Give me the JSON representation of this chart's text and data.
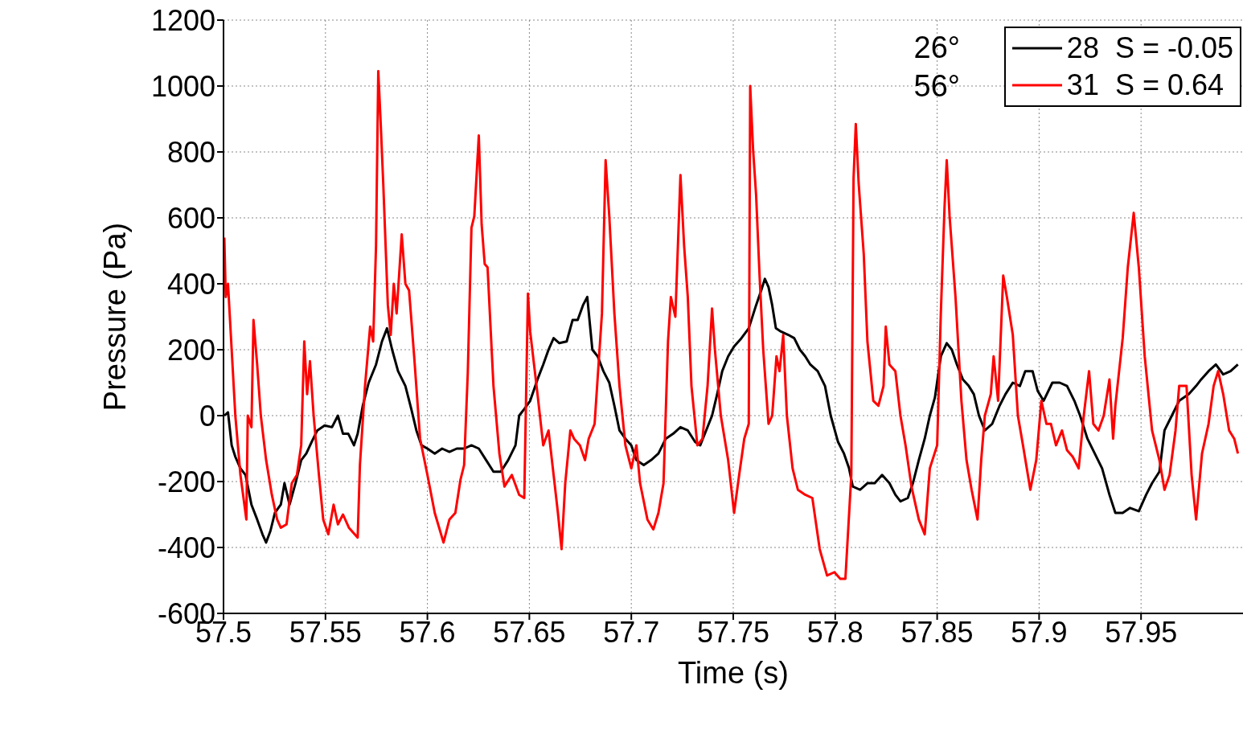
{
  "chart_data": {
    "type": "line",
    "xlabel": "Time (s)",
    "ylabel": "Pressure (Pa)",
    "xlim": [
      57.5,
      58
    ],
    "xticks": [
      57.5,
      57.55,
      57.6,
      57.65,
      57.7,
      57.75,
      57.8,
      57.85,
      57.9,
      57.95
    ],
    "ylim": [
      -600,
      1200
    ],
    "yticks": [
      -600,
      -400,
      -200,
      0,
      200,
      400,
      600,
      800,
      1000,
      1200
    ],
    "grid": true,
    "legend": "top right",
    "marker": "none",
    "line_style": "solid",
    "annotations": [
      "26°",
      "56°"
    ],
    "series": [
      {
        "name": "28  S = -0.05",
        "color": "#000000",
        "x": [
          57.5004,
          57.5022,
          57.504,
          57.5058,
          57.5083,
          57.5108,
          57.5137,
          57.5165,
          57.5191,
          57.5209,
          57.523,
          57.5252,
          57.5281,
          57.5299,
          57.5324,
          57.5353,
          57.5381,
          57.5406,
          57.5432,
          57.546,
          57.5496,
          57.5532,
          57.5561,
          57.5586,
          57.5612,
          57.564,
          57.5658,
          57.5683,
          57.5712,
          57.5748,
          57.5777,
          57.5802,
          57.5827,
          57.5856,
          57.5892,
          57.5921,
          57.5946,
          57.5971,
          57.6,
          57.6036,
          57.6072,
          57.6108,
          57.6144,
          57.618,
          57.6216,
          57.6252,
          57.6288,
          57.6324,
          57.636,
          57.6396,
          57.6432,
          57.645,
          57.6475,
          57.6504,
          57.654,
          57.6568,
          57.6594,
          57.6619,
          57.6647,
          57.6683,
          57.6712,
          57.6737,
          57.6763,
          57.6784,
          57.6809,
          57.6835,
          57.6863,
          57.6892,
          57.6917,
          57.6942,
          57.6971,
          57.7,
          57.7025,
          57.7061,
          57.7097,
          57.7133,
          57.7169,
          57.7205,
          57.7241,
          57.7277,
          57.7313,
          57.7338,
          57.7367,
          57.7396,
          57.7421,
          57.7446,
          57.7475,
          57.7504,
          57.754,
          57.7576,
          57.7612,
          57.7637,
          57.7655,
          57.7673,
          57.7691,
          57.7709,
          57.7734,
          57.777,
          57.7799,
          57.7827,
          57.7853,
          57.7878,
          57.7914,
          57.795,
          57.7978,
          57.8014,
          57.8043,
          57.8068,
          57.8086,
          57.8122,
          57.8158,
          57.8194,
          57.823,
          57.8266,
          57.8295,
          57.832,
          57.8356,
          57.8381,
          57.841,
          57.8439,
          57.8464,
          57.8489,
          57.8518,
          57.8547,
          57.8572,
          57.8597,
          57.8626,
          57.8655,
          57.868,
          57.8705,
          57.8734,
          57.877,
          57.8806,
          57.8835,
          57.8871,
          57.8906,
          57.8932,
          57.8968,
          57.8993,
          57.9022,
          57.9065,
          57.9101,
          57.9137,
          57.9173,
          57.9201,
          57.9237,
          57.9273,
          57.9309,
          57.9345,
          57.9374,
          57.941,
          57.9446,
          57.9489,
          57.9525,
          57.9554,
          57.959,
          57.9615,
          57.9651,
          57.9687,
          57.9734,
          57.977,
          57.9795,
          57.9831,
          57.9867,
          57.9903,
          57.9939,
          57.9975
        ],
        "values": [
          0,
          10,
          -90,
          -125,
          -160,
          -180,
          -270,
          -315,
          -360,
          -385,
          -350,
          -295,
          -270,
          -205,
          -270,
          -205,
          -135,
          -115,
          -80,
          -45,
          -30,
          -35,
          0,
          -55,
          -55,
          -90,
          -55,
          30,
          100,
          155,
          225,
          265,
          200,
          135,
          90,
          20,
          -45,
          -90,
          -100,
          -115,
          -100,
          -110,
          -100,
          -100,
          -90,
          -100,
          -135,
          -170,
          -170,
          -135,
          -90,
          0,
          20,
          45,
          110,
          155,
          200,
          235,
          220,
          225,
          290,
          290,
          335,
          360,
          200,
          180,
          135,
          100,
          30,
          -45,
          -70,
          -90,
          -135,
          -150,
          -135,
          -115,
          -70,
          -55,
          -35,
          -45,
          -80,
          -90,
          -45,
          0,
          65,
          135,
          180,
          210,
          235,
          265,
          335,
          380,
          415,
          390,
          335,
          265,
          255,
          245,
          235,
          200,
          180,
          155,
          135,
          90,
          0,
          -80,
          -115,
          -160,
          -215,
          -225,
          -205,
          -205,
          -180,
          -205,
          -240,
          -260,
          -250,
          -205,
          -135,
          -70,
          0,
          55,
          180,
          220,
          200,
          155,
          110,
          90,
          65,
          0,
          -45,
          -25,
          30,
          65,
          100,
          90,
          135,
          135,
          75,
          45,
          100,
          100,
          90,
          45,
          0,
          -70,
          -115,
          -160,
          -240,
          -295,
          -295,
          -280,
          -290,
          -240,
          -205,
          -170,
          -45,
          0,
          45,
          65,
          90,
          110,
          135,
          155,
          125,
          135,
          155
        ]
      },
      {
        "name": "31  S = 0.64",
        "color": "#ff0000",
        "x": [
          57.5004,
          57.5011,
          57.5022,
          57.5058,
          57.5083,
          57.5112,
          57.5119,
          57.5137,
          57.5147,
          57.5165,
          57.5183,
          57.5209,
          57.5237,
          57.5263,
          57.5281,
          57.5309,
          57.5335,
          57.536,
          57.5381,
          57.5396,
          57.541,
          57.5424,
          57.5442,
          57.5468,
          57.5489,
          57.5514,
          57.554,
          57.5561,
          57.5586,
          57.5615,
          57.5658,
          57.5669,
          57.5694,
          57.5719,
          57.5734,
          57.5748,
          57.5759,
          57.577,
          57.5784,
          57.5806,
          57.582,
          57.5835,
          57.5849,
          57.5874,
          57.5892,
          57.591,
          57.5935,
          57.5964,
          57.6,
          57.6036,
          57.6079,
          57.6108,
          57.6137,
          57.6162,
          57.618,
          57.6198,
          57.6216,
          57.623,
          57.6252,
          57.6266,
          57.6281,
          57.6295,
          57.6324,
          57.6353,
          57.6378,
          57.6414,
          57.645,
          57.6475,
          57.6493,
          57.6504,
          57.654,
          57.6568,
          57.6594,
          57.6619,
          57.664,
          57.6658,
          57.6676,
          57.6701,
          57.6719,
          57.6748,
          57.6773,
          57.6791,
          57.682,
          57.6856,
          57.6874,
          57.6892,
          57.6917,
          57.6942,
          57.6971,
          57.7,
          57.7025,
          57.7043,
          57.7079,
          57.7108,
          57.7133,
          57.7158,
          57.718,
          57.7194,
          57.7216,
          57.7241,
          57.7259,
          57.7277,
          57.7295,
          57.7324,
          57.7349,
          57.7374,
          57.7396,
          57.741,
          57.7439,
          57.7475,
          57.7504,
          57.7529,
          57.7554,
          57.7576,
          57.7583,
          57.7597,
          57.7612,
          57.7629,
          57.7647,
          57.7673,
          57.7691,
          57.7712,
          57.7727,
          57.7745,
          57.7763,
          57.7791,
          57.7817,
          57.7853,
          57.7888,
          57.7924,
          57.796,
          57.7996,
          57.8025,
          57.805,
          57.8079,
          57.809,
          57.8101,
          57.8115,
          57.814,
          57.8158,
          57.8187,
          57.8212,
          57.8237,
          57.8248,
          57.8266,
          57.8295,
          57.832,
          57.8345,
          57.8374,
          57.841,
          57.8439,
          57.8464,
          57.85,
          57.8518,
          57.8536,
          57.8547,
          57.8561,
          57.859,
          57.8619,
          57.8644,
          57.8669,
          57.8698,
          57.8716,
          57.8734,
          57.8763,
          57.8777,
          57.8799,
          57.8824,
          57.8842,
          57.8871,
          57.8896,
          57.8921,
          57.8957,
          57.8986,
          57.9011,
          57.9036,
          57.9058,
          57.9083,
          57.9112,
          57.9137,
          57.9165,
          57.9194,
          57.9219,
          57.9245,
          57.9266,
          57.9291,
          57.9317,
          57.9345,
          57.9363,
          57.9374,
          57.941,
          57.9435,
          57.9464,
          57.9489,
          57.9518,
          57.9554,
          57.959,
          57.9615,
          57.964,
          57.9669,
          57.9687,
          57.9723,
          57.9748,
          57.977,
          57.9799,
          57.9831,
          57.9856,
          57.9878,
          57.9903,
          57.9932,
          57.9957,
          57.9975
        ],
        "values": [
          540,
          360,
          400,
          0,
          -180,
          -315,
          0,
          -35,
          290,
          155,
          0,
          -135,
          -240,
          -315,
          -340,
          -330,
          -205,
          -180,
          -90,
          225,
          65,
          165,
          0,
          -180,
          -315,
          -360,
          -270,
          -330,
          -300,
          -340,
          -370,
          -150,
          90,
          270,
          225,
          515,
          1045,
          900,
          695,
          335,
          245,
          400,
          310,
          550,
          400,
          380,
          180,
          -70,
          -180,
          -295,
          -385,
          -315,
          -295,
          -195,
          -150,
          130,
          570,
          605,
          850,
          580,
          460,
          450,
          90,
          -115,
          -215,
          -180,
          -240,
          -250,
          370,
          255,
          65,
          -90,
          -45,
          -180,
          -295,
          -405,
          -205,
          -45,
          -70,
          -90,
          -135,
          -70,
          -25,
          310,
          775,
          605,
          310,
          90,
          -90,
          -160,
          -90,
          -205,
          -315,
          -345,
          -295,
          -205,
          225,
          360,
          300,
          730,
          515,
          360,
          90,
          -90,
          -70,
          90,
          325,
          200,
          0,
          -135,
          -295,
          -180,
          -70,
          -25,
          1000,
          810,
          670,
          425,
          200,
          -25,
          0,
          180,
          135,
          245,
          0,
          -160,
          -225,
          -240,
          -250,
          -405,
          -485,
          -475,
          -495,
          -495,
          -180,
          720,
          885,
          705,
          490,
          225,
          45,
          30,
          90,
          270,
          155,
          135,
          0,
          -90,
          -215,
          -315,
          -360,
          -160,
          -90,
          310,
          630,
          775,
          605,
          360,
          45,
          -135,
          -225,
          -315,
          -135,
          0,
          65,
          180,
          45,
          425,
          360,
          245,
          0,
          -90,
          -225,
          -135,
          45,
          -25,
          -25,
          -90,
          -45,
          -105,
          -125,
          -160,
          0,
          135,
          -25,
          -45,
          0,
          110,
          -70,
          30,
          235,
          450,
          615,
          450,
          180,
          -45,
          -135,
          -225,
          -180,
          -45,
          90,
          90,
          -180,
          -315,
          -115,
          -25,
          90,
          135,
          65,
          -45,
          -70,
          -115
        ]
      }
    ]
  }
}
